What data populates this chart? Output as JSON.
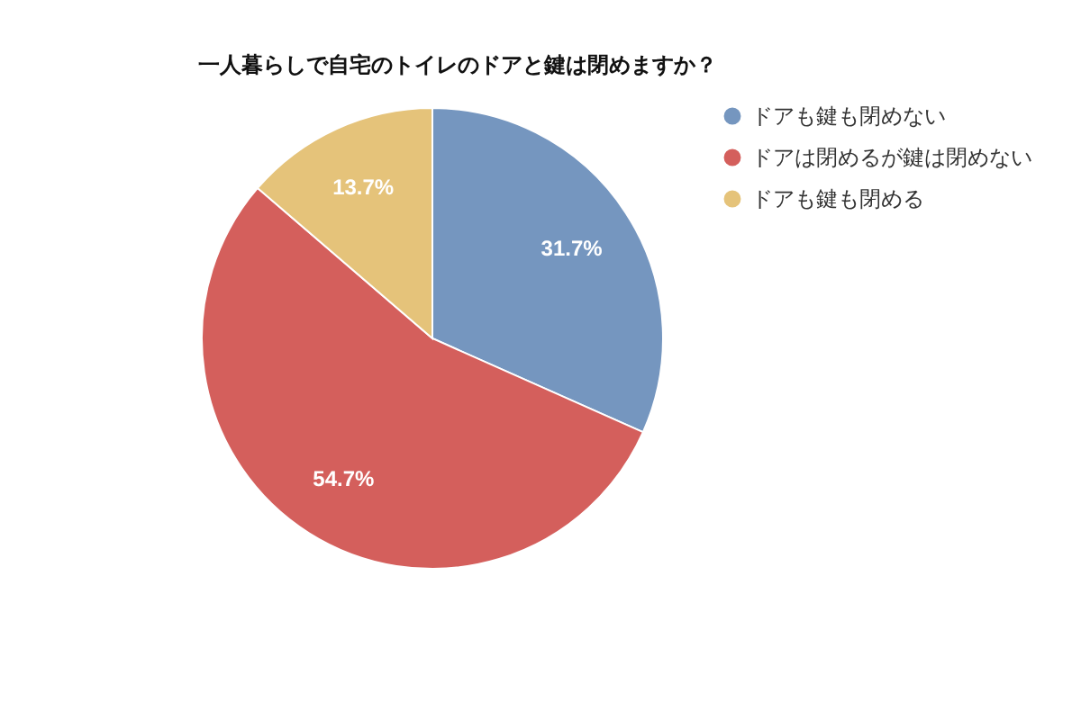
{
  "chart_data": {
    "type": "pie",
    "title": "一人暮らしで自宅のトイレのドアと鍵は閉めますか？",
    "categories": [
      "ドアも鍵も閉めない",
      "ドアは閉めるが鍵は閉めない",
      "ドアも鍵も閉める"
    ],
    "values": [
      31.7,
      54.7,
      13.7
    ],
    "colors": [
      "#7596bf",
      "#d45f5c",
      "#e5c37a"
    ],
    "value_labels": [
      "31.7%",
      "54.7%",
      "13.7%"
    ],
    "legend": "right"
  }
}
